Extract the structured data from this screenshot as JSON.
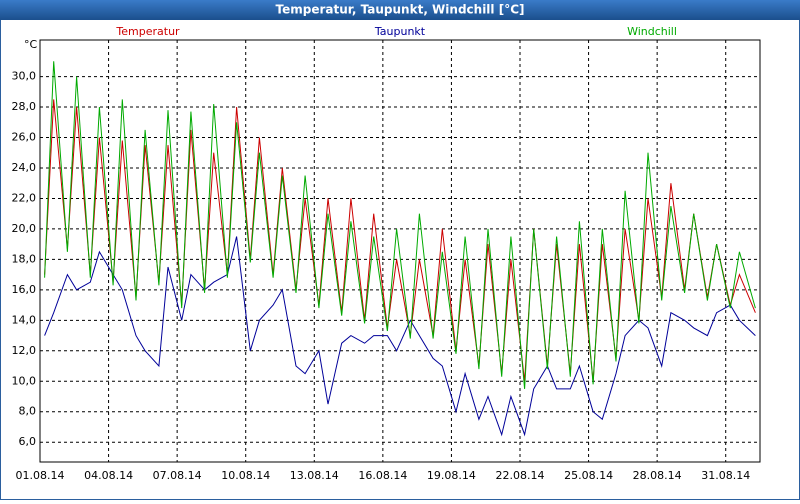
{
  "chart_data": {
    "type": "line",
    "title": "Temperatur, Taupunkt, Windchill [°C]",
    "ylabel": "°C",
    "x": [
      0.2,
      0.6,
      1.2,
      1.6,
      2.2,
      2.6,
      3.2,
      3.6,
      4.2,
      4.6,
      5.2,
      5.6,
      6.2,
      6.6,
      7.2,
      7.6,
      8.2,
      8.6,
      9.2,
      9.6,
      10.2,
      10.6,
      11.2,
      11.6,
      12.2,
      12.6,
      13.2,
      13.6,
      14.2,
      14.6,
      15.2,
      15.6,
      16.2,
      16.6,
      17.2,
      17.6,
      18.2,
      18.6,
      19.2,
      19.6,
      20.2,
      20.6,
      21.2,
      21.6,
      22.2,
      22.6,
      23.2,
      23.6,
      24.2,
      24.6,
      25.2,
      25.6,
      26.2,
      26.6,
      27.2,
      27.6,
      28.2,
      28.6,
      29.2,
      29.6,
      30.2,
      30.6,
      31.3
    ],
    "series": [
      {
        "name": "Temperatur",
        "color": "#cc0000",
        "values": [
          17,
          28.5,
          18.7,
          28,
          17,
          26,
          16.5,
          25.8,
          15.5,
          25.5,
          16.5,
          25.5,
          15,
          26.5,
          16,
          25,
          17,
          28,
          18,
          26,
          17,
          24,
          16,
          22,
          15,
          22,
          14.5,
          22,
          14,
          21,
          13.5,
          18,
          13,
          18,
          13,
          20,
          12,
          18,
          11,
          19,
          10.5,
          18,
          10,
          20,
          11,
          19,
          10.5,
          19,
          10,
          19,
          11.5,
          20,
          14,
          22,
          15.5,
          23,
          16,
          21,
          15.5,
          19,
          15,
          17,
          14.5
        ]
      },
      {
        "name": "Taupunkt",
        "color": "#000099",
        "values": [
          13,
          14.5,
          17,
          16,
          16.5,
          18.5,
          17,
          16,
          13,
          12,
          11,
          17.5,
          14,
          17,
          16,
          16.5,
          17,
          19.5,
          12,
          14,
          15,
          16,
          11,
          10.5,
          12,
          8.5,
          12.5,
          13,
          12.5,
          13,
          13,
          12,
          14,
          13,
          11.5,
          11,
          8,
          10.5,
          7.5,
          9,
          6.5,
          9,
          6.5,
          9.5,
          11,
          9.5,
          9.5,
          11,
          8,
          7.5,
          10.5,
          13,
          14,
          13.5,
          11,
          14.5,
          14,
          13.5,
          13,
          14.5,
          15,
          14,
          13
        ]
      },
      {
        "name": "Windchill",
        "color": "#00aa00",
        "values": [
          16.8,
          31,
          18.5,
          30,
          16.8,
          28,
          16.3,
          28.5,
          15.3,
          26.5,
          16.3,
          27.8,
          14.8,
          27.7,
          15.8,
          28.2,
          16.8,
          27,
          17.8,
          25,
          16.8,
          23.5,
          15.8,
          23.5,
          14.8,
          21,
          14.3,
          20.5,
          13.8,
          19.5,
          13.3,
          20,
          12.8,
          21,
          12.8,
          18.5,
          11.8,
          19.5,
          10.8,
          20,
          10.3,
          19.5,
          9.5,
          20,
          10.8,
          19.5,
          10.3,
          20.5,
          9.8,
          20,
          11.3,
          22.5,
          13.8,
          25,
          15.3,
          21.5,
          15.8,
          21,
          15.3,
          19,
          14.8,
          18.5,
          14.8
        ]
      }
    ],
    "xlim": [
      0,
      31.5
    ],
    "xticks": [
      {
        "value": 0,
        "label": "01.08.14"
      },
      {
        "value": 3,
        "label": "04.08.14"
      },
      {
        "value": 6,
        "label": "07.08.14"
      },
      {
        "value": 9,
        "label": "10.08.14"
      },
      {
        "value": 12,
        "label": "13.08.14"
      },
      {
        "value": 15,
        "label": "16.08.14"
      },
      {
        "value": 18,
        "label": "19.08.14"
      },
      {
        "value": 21,
        "label": "22.08.14"
      },
      {
        "value": 24,
        "label": "25.08.14"
      },
      {
        "value": 27,
        "label": "28.08.14"
      },
      {
        "value": 30,
        "label": "31.08.14"
      }
    ],
    "ylim": [
      4.7,
      32.4
    ],
    "yticks": [
      {
        "value": 6,
        "label": "6,0"
      },
      {
        "value": 8,
        "label": "8,0"
      },
      {
        "value": 10,
        "label": "10,0"
      },
      {
        "value": 12,
        "label": "12,0"
      },
      {
        "value": 14,
        "label": "14,0"
      },
      {
        "value": 16,
        "label": "16,0"
      },
      {
        "value": 18,
        "label": "18,0"
      },
      {
        "value": 20,
        "label": "20,0"
      },
      {
        "value": 22,
        "label": "22,0"
      },
      {
        "value": 24,
        "label": "24,0"
      },
      {
        "value": 26,
        "label": "26,0"
      },
      {
        "value": 28,
        "label": "28,0"
      },
      {
        "value": 30,
        "label": "30,0"
      }
    ],
    "grid": true
  }
}
